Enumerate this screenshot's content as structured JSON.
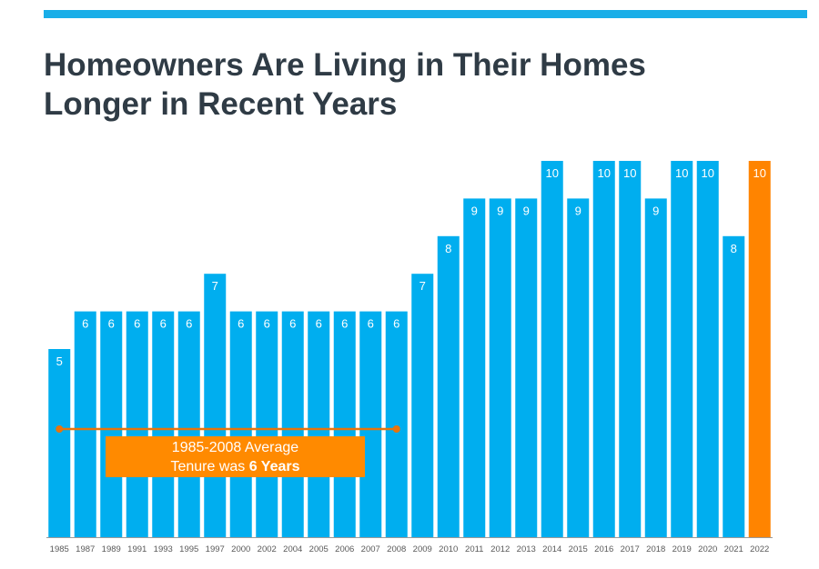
{
  "title": {
    "line1": "Homeowners Are Living in Their Homes",
    "line2": "Longer in Recent Years"
  },
  "colors": {
    "accent_bar": "#19aee8",
    "bar": "#00aeef",
    "highlight_bar": "#ff8400",
    "average_line": "#e8740c",
    "annotation_bg": "#ff8a00",
    "title_text": "#2f3b45"
  },
  "annotation": {
    "line1": "1985-2008 Average",
    "line2_prefix": "Tenure was ",
    "line2_bold": "6 Years"
  },
  "chart_data": {
    "type": "bar",
    "title": "Homeowners Are Living in Their Homes Longer in Recent Years",
    "xlabel": "",
    "ylabel": "",
    "ylim": [
      0,
      10
    ],
    "grid": false,
    "legend": "none",
    "categories": [
      "1985",
      "1987",
      "1989",
      "1991",
      "1993",
      "1995",
      "1997",
      "2000",
      "2002",
      "2004",
      "2005",
      "2006",
      "2007",
      "2008",
      "2009",
      "2010",
      "2011",
      "2012",
      "2013",
      "2014",
      "2015",
      "2016",
      "2017",
      "2018",
      "2019",
      "2020",
      "2021",
      "2022"
    ],
    "values": [
      5,
      6,
      6,
      6,
      6,
      6,
      7,
      6,
      6,
      6,
      6,
      6,
      6,
      6,
      7,
      8,
      9,
      9,
      9,
      10,
      9,
      10,
      10,
      9,
      10,
      10,
      8,
      10
    ],
    "highlight": "2022",
    "reference_line": {
      "from": "1985",
      "to": "2008",
      "value": 6,
      "label": "1985-2008 Average Tenure was 6 Years"
    }
  }
}
